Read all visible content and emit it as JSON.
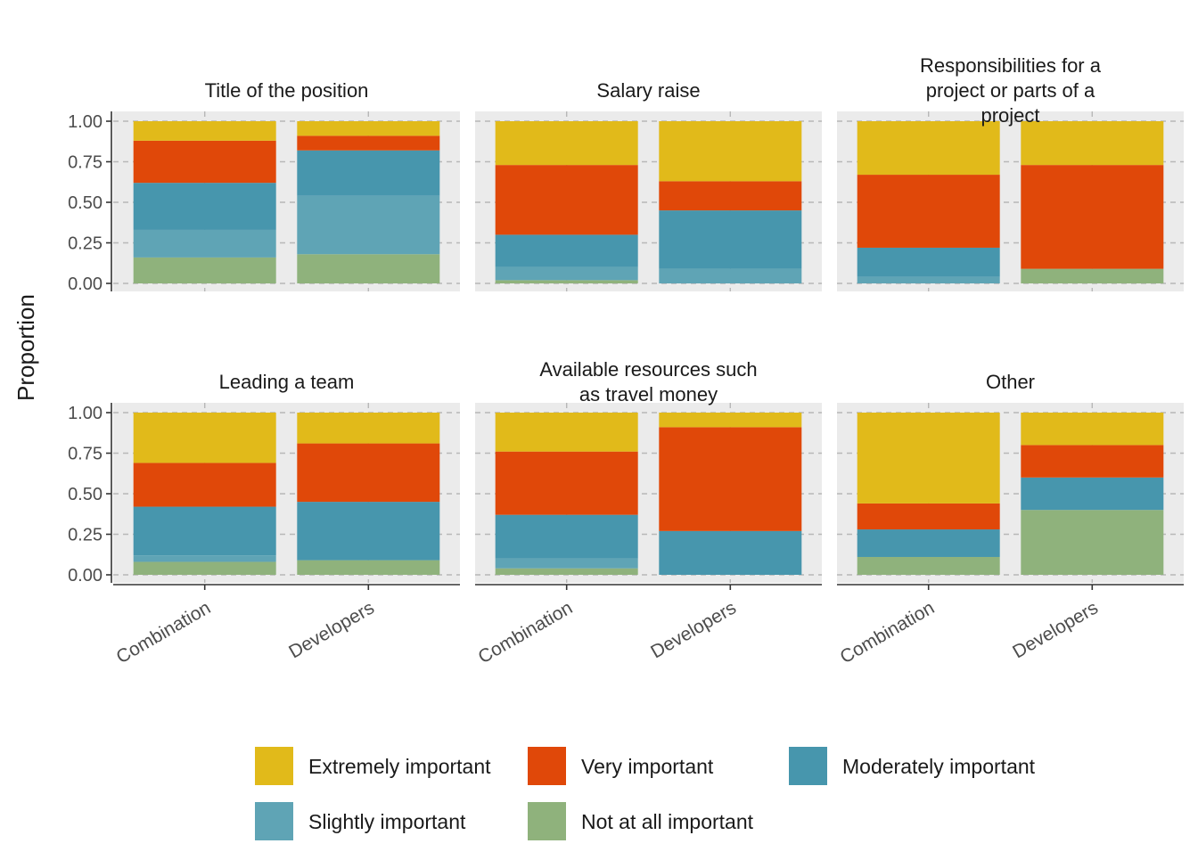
{
  "chart_data": {
    "type": "bar",
    "stacked": true,
    "ylabel": "Proportion",
    "xlabel": "",
    "ylim": [
      0,
      1
    ],
    "y_ticks": [
      "0.00",
      "0.25",
      "0.50",
      "0.75",
      "1.00"
    ],
    "categories": [
      "Combination",
      "Developers"
    ],
    "levels": [
      {
        "name": "Not at all important",
        "color": "#8fb27c"
      },
      {
        "name": "Slightly important",
        "color": "#5fa4b5"
      },
      {
        "name": "Moderately important",
        "color": "#4796ad"
      },
      {
        "name": "Very important",
        "color": "#e04809"
      },
      {
        "name": "Extremely important",
        "color": "#e1ba1a"
      }
    ],
    "legend_order": [
      "Extremely important",
      "Very important",
      "Moderately important",
      "Slightly important",
      "Not at all important"
    ],
    "legend_position": "bottom",
    "panel_background": "#ebebeb",
    "grid_color": "#b8b8b8",
    "panels": [
      {
        "title": [
          "Title of the position"
        ],
        "values": {
          "Combination": [
            0.16,
            0.17,
            0.29,
            0.26,
            0.12
          ],
          "Developers": [
            0.18,
            0.36,
            0.28,
            0.09,
            0.09
          ]
        }
      },
      {
        "title": [
          "Salary raise"
        ],
        "values": {
          "Combination": [
            0.02,
            0.08,
            0.2,
            0.43,
            0.27
          ],
          "Developers": [
            0.0,
            0.09,
            0.36,
            0.18,
            0.37
          ]
        }
      },
      {
        "title": [
          "Responsibilities for a",
          "project or parts of a",
          "project"
        ],
        "values": {
          "Combination": [
            0.0,
            0.04,
            0.18,
            0.45,
            0.33
          ],
          "Developers": [
            0.09,
            0.0,
            0.0,
            0.64,
            0.27
          ]
        }
      },
      {
        "title": [
          "Leading a team"
        ],
        "values": {
          "Combination": [
            0.08,
            0.04,
            0.3,
            0.27,
            0.31
          ],
          "Developers": [
            0.09,
            0.0,
            0.36,
            0.36,
            0.19
          ]
        }
      },
      {
        "title": [
          "Available resources such",
          "as travel money"
        ],
        "values": {
          "Combination": [
            0.04,
            0.06,
            0.27,
            0.39,
            0.24
          ],
          "Developers": [
            0.0,
            0.0,
            0.27,
            0.64,
            0.09
          ]
        }
      },
      {
        "title": [
          "Other"
        ],
        "values": {
          "Combination": [
            0.11,
            0.0,
            0.17,
            0.16,
            0.56
          ],
          "Developers": [
            0.4,
            0.0,
            0.2,
            0.2,
            0.2
          ]
        }
      }
    ]
  }
}
